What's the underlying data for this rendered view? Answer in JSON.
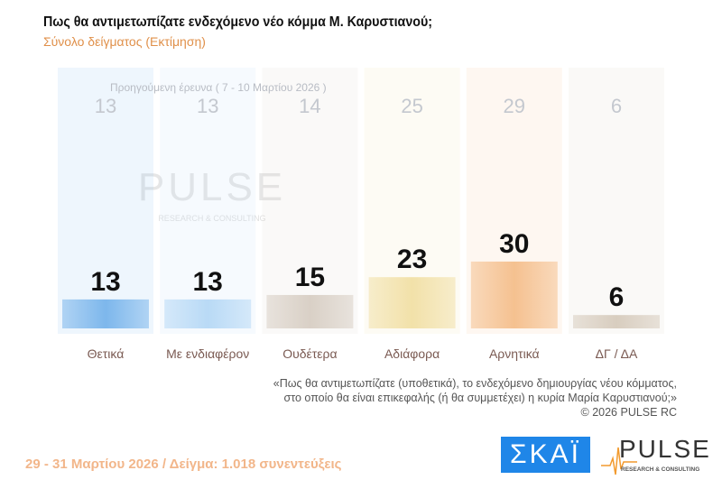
{
  "header": {
    "title": "Πως θα αντιμετωπίζατε ενδεχόμενο νέο κόμμα Μ. Καρυστιανού;",
    "subtitle": "Σύνολο δείγματος  (Εκτίμηση)"
  },
  "chart_data": {
    "type": "bar",
    "categories": [
      "Θετικά",
      "Με ενδιαφέρον",
      "Ουδέτερα",
      "Αδιάφορα",
      "Αρνητικά",
      "ΔΓ / ΔΑ"
    ],
    "series": [
      {
        "name": "",
        "values": [
          13,
          13,
          15,
          23,
          30,
          6
        ]
      },
      {
        "name": "Προηγούμενη έρευνα ( 7 - 10 Μαρτίου 2026 )",
        "values": [
          13,
          13,
          14,
          25,
          29,
          6
        ]
      }
    ],
    "colors": [
      "#7db7ec",
      "#b9daf6",
      "#d9d0c6",
      "#f2e1a9",
      "#f5c190",
      "#d8cdbf"
    ],
    "ylim": [
      0,
      30
    ],
    "grid": false
  },
  "watermark": {
    "text": "PULSE",
    "sub": "RESEARCH & CONSULTING"
  },
  "question": {
    "line1": "«Πως θα αντιμετωπίζατε (υποθετικά), το ενδεχόμενο δημιουργίας νέου κόμματος,",
    "line2": "στο οποίο θα είναι επικεφαλής (ή θα συμμετέχει) η κυρία Μαρία Καρυστιανού;»",
    "copyright": "©  2026  PULSE RC"
  },
  "footer": {
    "text": "29 - 31  Μαρτίου 2026  /  Δείγμα:  1.018 συνεντεύξεις"
  },
  "logos": {
    "skai": "ΣΚΑΪ",
    "pulse": "PULSE",
    "pulse_sub": "RESEARCH & CONSULTING"
  }
}
